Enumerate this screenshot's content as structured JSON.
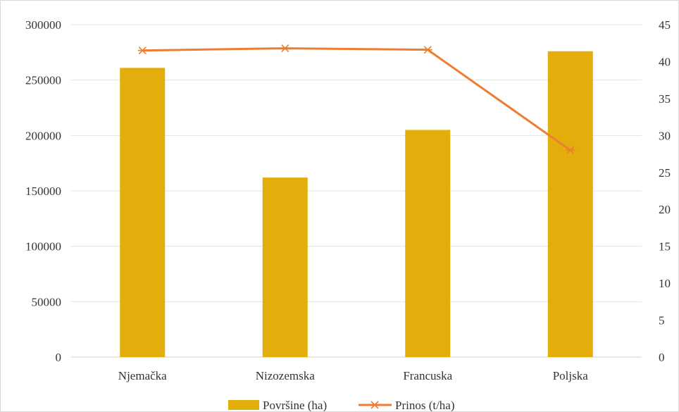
{
  "chart_data": {
    "type": "bar",
    "categories": [
      "Njemačka",
      "Nizozemska",
      "Francuska",
      "Poljska"
    ],
    "series": [
      {
        "name": "Površine (ha)",
        "type": "bar",
        "axis": "left",
        "color": "#e3ae0b",
        "values": [
          261000,
          162000,
          205000,
          276000
        ]
      },
      {
        "name": "Prinos (t/ha)",
        "type": "line",
        "axis": "right",
        "color": "#ed7d31",
        "marker": "asterisk",
        "values": [
          41.5,
          41.8,
          41.6,
          28
        ]
      }
    ],
    "left_axis": {
      "ylim": [
        0,
        300000
      ],
      "ticks": [
        "0",
        "50000",
        "100000",
        "150000",
        "200000",
        "250000",
        "300000"
      ]
    },
    "right_axis": {
      "ylim": [
        0,
        45
      ],
      "ticks": [
        "0",
        "5",
        "10",
        "15",
        "20",
        "25",
        "30",
        "35",
        "40",
        "45"
      ]
    },
    "grid": true,
    "legend": "bottom-center",
    "title": "",
    "xlabel": "",
    "ylabel": ""
  }
}
